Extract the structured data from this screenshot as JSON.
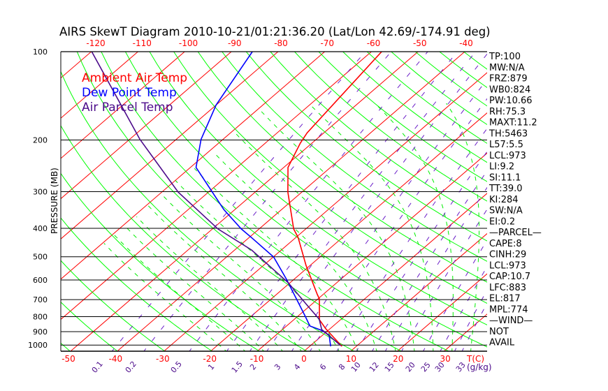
{
  "chart_data": {
    "type": "skewt",
    "title": "AIRS SkewT Diagram 2010-10-21/01:21:36.20 (Lat/Lon 42.69/-174.91 deg)",
    "ylabel": "PRESSURE (MB)",
    "xlabel": "T(C)",
    "mixing_ratio_label": "(g/kg)",
    "pressure_ticks": [
      100,
      200,
      300,
      400,
      500,
      600,
      700,
      800,
      900,
      1000
    ],
    "bottom_temp_ticks": [
      -50,
      -40,
      -30,
      -20,
      -10,
      0,
      10,
      20,
      30
    ],
    "top_temp_ticks": [
      -120,
      -110,
      -100,
      -90,
      -80,
      -70,
      -60,
      -50,
      -40
    ],
    "mixing_ratio_ticks": [
      "0.1",
      "0.2",
      "0.5",
      "1",
      "1.5",
      "2",
      "3",
      "4",
      "6",
      "8",
      "10",
      "12",
      "15",
      "20",
      "25",
      "30",
      "33"
    ],
    "legend": [
      {
        "name": "Ambient Air Temp",
        "color": "#ff0000"
      },
      {
        "name": "Dew Point Temp",
        "color": "#0000ff"
      },
      {
        "name": "Air Parcel Temp",
        "color": "#4b0a8a"
      }
    ],
    "series": [
      {
        "name": "Ambient Air Temp",
        "color": "#ff0000",
        "pressure": [
          1010,
          880,
          820,
          696,
          673,
          535,
          430,
          402,
          301,
          248,
          205,
          189,
          100
        ],
        "temp": [
          6.9,
          -0.9,
          -4.5,
          -9.7,
          -11.2,
          -20.9,
          -29.5,
          -32.6,
          -43.0,
          -49.1,
          -52.5,
          -53.6,
          -57.8
        ]
      },
      {
        "name": "Dew Point Temp",
        "color": "#0000ff",
        "pressure": [
          1010,
          925,
          890,
          861,
          798,
          597,
          501,
          430,
          402,
          345,
          248,
          199,
          152,
          100
        ],
        "temp": [
          4.5,
          1.4,
          -1.5,
          -5.0,
          -8.4,
          -21.6,
          -29.9,
          -39.5,
          -43.8,
          -52.4,
          -68.8,
          -74.7,
          -80.0,
          -85.5
        ]
      },
      {
        "name": "Air Parcel Temp",
        "color": "#4b0a8a",
        "pressure": [
          1004,
          885,
          816,
          735,
          613,
          474,
          402,
          301,
          199,
          100
        ],
        "temp": [
          6.5,
          -1.6,
          -4.7,
          -10.5,
          -20.4,
          -36.4,
          -48.8,
          -66.5,
          -87.8,
          -119.9
        ]
      }
    ],
    "grid": true
  },
  "indices": [
    "TP:100",
    "MW:N/A",
    "FRZ:879",
    "WB0:824",
    "PW:10.66",
    "RH:75.3",
    "MAXT:11.2",
    "TH:5463",
    "L57:5.5",
    "LCL:973",
    "LI:9.2",
    "SI:11.1",
    "TT:39.0",
    "KI:284",
    "SW:N/A",
    "EI:0.2",
    "—PARCEL—",
    "CAPE:8",
    "CINH:29",
    "LCL:973",
    "CAP:10.7",
    "LFC:883",
    "EL:817",
    "MPL:774",
    "—WIND—",
    "NOT",
    "AVAIL"
  ]
}
